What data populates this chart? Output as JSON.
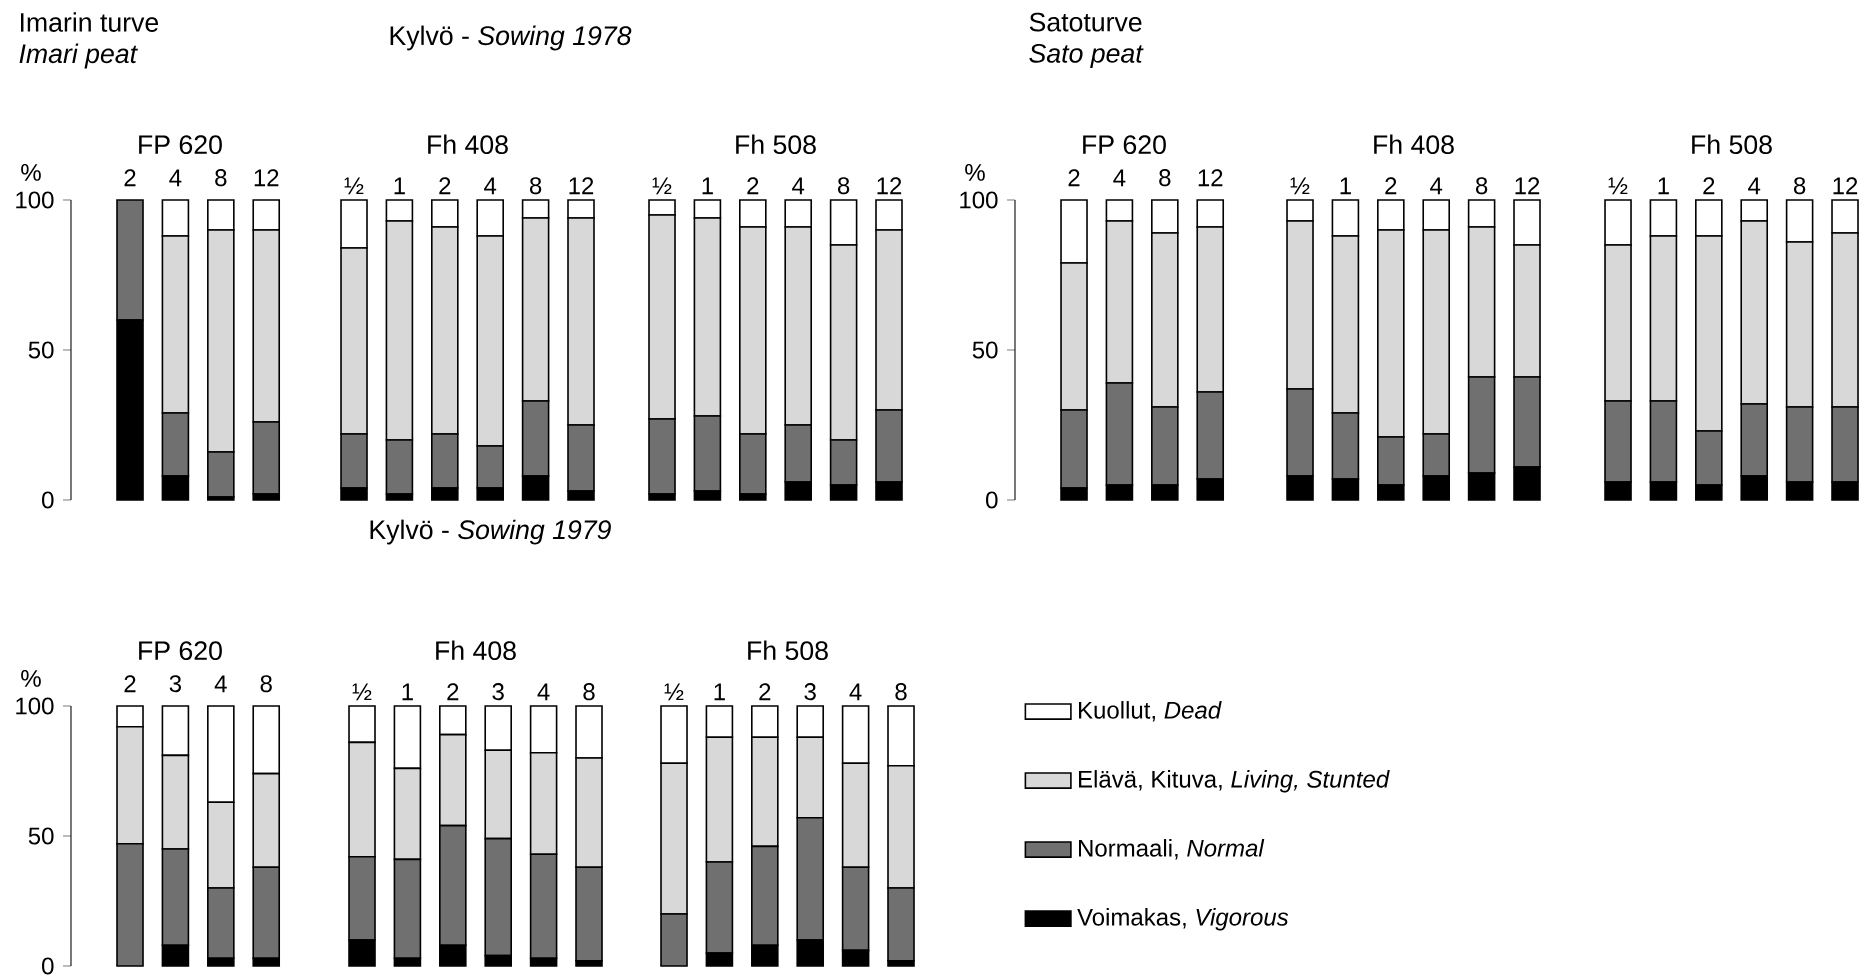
{
  "chart_data": [
    {
      "type": "bar",
      "stacked": true,
      "title": "FP 620",
      "ylabel": "%",
      "annotations": [
        "Imarin turve",
        "Imari peat"
      ],
      "categories": [
        "2",
        "4",
        "8",
        "12"
      ],
      "ylim": [
        0,
        100
      ],
      "yticks": [
        0,
        50,
        100
      ],
      "series": [
        {
          "color": "#000000",
          "values": [
            60,
            8,
            1,
            2
          ]
        },
        {
          "color": "#707070",
          "values": [
            40,
            21,
            15,
            24
          ]
        },
        {
          "color": "#d8d8d8",
          "values": [
            0,
            59,
            74,
            64
          ]
        },
        {
          "color": "#ffffff",
          "values": [
            0,
            12,
            10,
            10
          ]
        }
      ]
    },
    {
      "type": "bar",
      "stacked": true,
      "title": "Fh 408",
      "annotations": [
        "Kylvö - *Sowing 1978*"
      ],
      "tick_labels": "x",
      "categories": [
        "½",
        "1",
        "2",
        "4",
        "8",
        "12"
      ],
      "ylim": [
        0,
        100
      ],
      "yticks": [
        0,
        50,
        100
      ],
      "series": [
        {
          "color": "#000000",
          "values": [
            4,
            2,
            4,
            4,
            8,
            3
          ]
        },
        {
          "color": "#707070",
          "values": [
            18,
            18,
            18,
            14,
            25,
            22
          ]
        },
        {
          "color": "#d8d8d8",
          "values": [
            62,
            73,
            69,
            70,
            61,
            69
          ]
        },
        {
          "color": "#ffffff",
          "values": [
            16,
            7,
            9,
            12,
            6,
            6
          ]
        }
      ]
    },
    {
      "type": "bar",
      "stacked": true,
      "title": "Fh 508",
      "tick_labels": "x",
      "categories": [
        "½",
        "1",
        "2",
        "4",
        "8",
        "12"
      ],
      "ylim": [
        0,
        100
      ],
      "yticks": [
        0,
        50,
        100
      ],
      "series": [
        {
          "color": "#000000",
          "values": [
            2,
            3,
            2,
            6,
            5,
            6
          ]
        },
        {
          "color": "#707070",
          "values": [
            25,
            25,
            20,
            19,
            15,
            24
          ]
        },
        {
          "color": "#d8d8d8",
          "values": [
            68,
            66,
            69,
            66,
            65,
            60
          ]
        },
        {
          "color": "#ffffff",
          "values": [
            5,
            6,
            9,
            9,
            15,
            10
          ]
        }
      ]
    },
    {
      "type": "bar",
      "stacked": true,
      "title": "FP 620",
      "ylabel": "%",
      "annotations": [
        "Satoturve",
        "Sato peat"
      ],
      "categories": [
        "2",
        "4",
        "8",
        "12"
      ],
      "ylim": [
        0,
        100
      ],
      "yticks": [
        0,
        50,
        100
      ],
      "series": [
        {
          "color": "#000000",
          "values": [
            4,
            5,
            5,
            7
          ]
        },
        {
          "color": "#707070",
          "values": [
            26,
            34,
            26,
            29
          ]
        },
        {
          "color": "#d8d8d8",
          "values": [
            49,
            54,
            58,
            55
          ]
        },
        {
          "color": "#ffffff",
          "values": [
            21,
            7,
            11,
            9
          ]
        }
      ]
    },
    {
      "type": "bar",
      "stacked": true,
      "title": "Fh 408",
      "tick_labels": "x",
      "categories": [
        "½",
        "1",
        "2",
        "4",
        "8",
        "12"
      ],
      "ylim": [
        0,
        100
      ],
      "yticks": [
        0,
        50,
        100
      ],
      "series": [
        {
          "color": "#000000",
          "values": [
            8,
            7,
            5,
            8,
            9,
            11
          ]
        },
        {
          "color": "#707070",
          "values": [
            29,
            22,
            16,
            14,
            32,
            30
          ]
        },
        {
          "color": "#d8d8d8",
          "values": [
            56,
            59,
            69,
            68,
            50,
            44
          ]
        },
        {
          "color": "#ffffff",
          "values": [
            7,
            12,
            10,
            10,
            9,
            15
          ]
        }
      ]
    },
    {
      "type": "bar",
      "stacked": true,
      "title": "Fh 508",
      "tick_labels": "x",
      "categories": [
        "½",
        "1",
        "2",
        "4",
        "8",
        "12"
      ],
      "ylim": [
        0,
        100
      ],
      "yticks": [
        0,
        50,
        100
      ],
      "series": [
        {
          "color": "#000000",
          "values": [
            6,
            6,
            5,
            8,
            6,
            6
          ]
        },
        {
          "color": "#707070",
          "values": [
            27,
            27,
            18,
            24,
            25,
            25
          ]
        },
        {
          "color": "#d8d8d8",
          "values": [
            52,
            55,
            65,
            61,
            55,
            58
          ]
        },
        {
          "color": "#ffffff",
          "values": [
            15,
            12,
            12,
            7,
            14,
            11
          ]
        }
      ]
    },
    {
      "type": "bar",
      "stacked": true,
      "title": "FP 620",
      "ylabel": "%",
      "categories": [
        "2",
        "3",
        "4",
        "8"
      ],
      "ylim": [
        0,
        100
      ],
      "yticks": [
        0,
        50,
        100
      ],
      "series": [
        {
          "color": "#000000",
          "values": [
            0,
            8,
            3,
            3
          ]
        },
        {
          "color": "#707070",
          "values": [
            47,
            37,
            27,
            35
          ]
        },
        {
          "color": "#d8d8d8",
          "values": [
            45,
            36,
            33,
            36
          ]
        },
        {
          "color": "#ffffff",
          "values": [
            8,
            19,
            37,
            26
          ]
        }
      ]
    },
    {
      "type": "bar",
      "stacked": true,
      "title": "Fh 408",
      "annotations": [
        "Kylvö - *Sowing 1979*"
      ],
      "tick_labels": "x",
      "categories": [
        "½",
        "1",
        "2",
        "3",
        "4",
        "8"
      ],
      "ylim": [
        0,
        100
      ],
      "yticks": [
        0,
        50,
        100
      ],
      "series": [
        {
          "color": "#000000",
          "values": [
            10,
            3,
            8,
            4,
            3,
            2
          ]
        },
        {
          "color": "#707070",
          "values": [
            32,
            38,
            46,
            45,
            40,
            36
          ]
        },
        {
          "color": "#d8d8d8",
          "values": [
            44,
            35,
            35,
            34,
            39,
            42
          ]
        },
        {
          "color": "#ffffff",
          "values": [
            14,
            24,
            11,
            17,
            18,
            20
          ]
        }
      ]
    },
    {
      "type": "bar",
      "stacked": true,
      "title": "Fh 508",
      "tick_labels": "x",
      "legend": "right",
      "categories": [
        "½",
        "1",
        "2",
        "3",
        "4",
        "8"
      ],
      "ylim": [
        0,
        100
      ],
      "yticks": [
        0,
        50,
        100
      ],
      "series": [
        {
          "name": "Voimakas, *Vigorous*",
          "color": "#000000",
          "values": [
            0,
            5,
            8,
            10,
            6,
            2
          ]
        },
        {
          "name": "Normaali, *Normal*",
          "color": "#707070",
          "values": [
            20,
            35,
            38,
            47,
            32,
            28
          ]
        },
        {
          "name": "Elävä, Kituva, *Living, Stunted*",
          "color": "#d8d8d8",
          "values": [
            58,
            48,
            42,
            31,
            40,
            47
          ]
        },
        {
          "name": "Kuollut, *Dead*",
          "color": "#ffffff",
          "values": [
            22,
            12,
            12,
            12,
            22,
            23
          ]
        }
      ]
    }
  ]
}
